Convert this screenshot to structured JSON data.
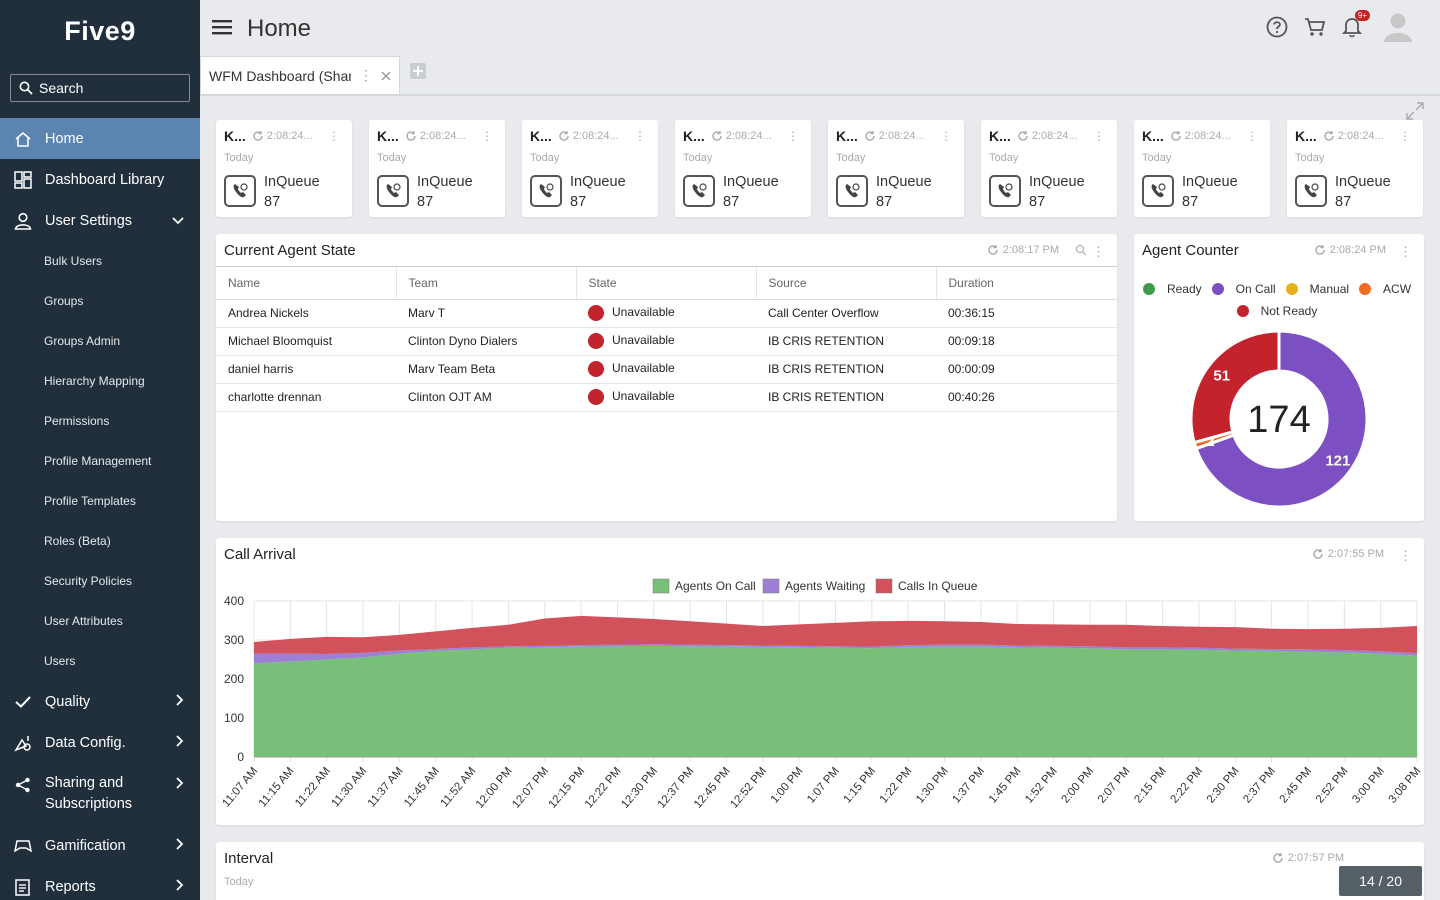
{
  "sidebar": {
    "logo": "Five9",
    "search_placeholder": "Search",
    "items": [
      {
        "label": "Home",
        "icon": "home-icon",
        "active": true
      },
      {
        "label": "Dashboard Library",
        "icon": "dashboard-icon"
      },
      {
        "label": "User Settings",
        "icon": "user-icon",
        "expanded": true
      }
    ],
    "subitems": [
      "Bulk Users",
      "Groups",
      "Groups Admin",
      "Hierarchy Mapping",
      "Permissions",
      "Profile Management",
      "Profile Templates",
      "Roles (Beta)",
      "Security Policies",
      "User Attributes",
      "Users"
    ],
    "items2": [
      {
        "label": "Quality",
        "icon": "check-icon"
      },
      {
        "label": "Data Config.",
        "icon": "data-config-icon"
      },
      {
        "label": "Sharing and Subscriptions",
        "icon": "share-icon"
      },
      {
        "label": "Gamification",
        "icon": "gamepad-icon"
      },
      {
        "label": "Reports",
        "icon": "reports-icon"
      }
    ]
  },
  "header": {
    "title": "Home",
    "notification_badge": "9+"
  },
  "tabs": [
    {
      "label": "WFM Dashboard (Shared)"
    }
  ],
  "kpi_cards": [
    {
      "title": "K...",
      "time": "2:08:24...",
      "period": "Today",
      "label": "InQueue",
      "value": "87"
    },
    {
      "title": "K...",
      "time": "2:08:24...",
      "period": "Today",
      "label": "InQueue",
      "value": "87"
    },
    {
      "title": "K...",
      "time": "2:08:24...",
      "period": "Today",
      "label": "InQueue",
      "value": "87"
    },
    {
      "title": "K...",
      "time": "2:08:24...",
      "period": "Today",
      "label": "InQueue",
      "value": "87"
    },
    {
      "title": "K...",
      "time": "2:08:24...",
      "period": "Today",
      "label": "InQueue",
      "value": "87"
    },
    {
      "title": "K...",
      "time": "2:08:24...",
      "period": "Today",
      "label": "InQueue",
      "value": "87"
    },
    {
      "title": "K...",
      "time": "2:08:24...",
      "period": "Today",
      "label": "InQueue",
      "value": "87"
    },
    {
      "title": "K...",
      "time": "2:08:24...",
      "period": "Today",
      "label": "InQueue",
      "value": "87"
    }
  ],
  "agent_state": {
    "title": "Current Agent State",
    "time": "2:08:17 PM",
    "columns": [
      "Name",
      "Team",
      "State",
      "Source",
      "Duration"
    ],
    "rows": [
      [
        "Andrea Nickels",
        "Marv T",
        "Unavailable",
        "Call Center Overflow",
        "00:36:15"
      ],
      [
        "Michael Bloomquist",
        "Clinton Dyno Dialers",
        "Unavailable",
        "IB CRIS RETENTION",
        "00:09:18"
      ],
      [
        "daniel harris",
        "Marv Team Beta",
        "Unavailable",
        "IB CRIS RETENTION",
        "00:00:09"
      ],
      [
        "charlotte drennan",
        "Clinton OJT AM",
        "Unavailable",
        "IB CRIS RETENTION",
        "00:40:26"
      ]
    ],
    "state_color": "#c3232c"
  },
  "agent_counter": {
    "title": "Agent Counter",
    "time": "2:08:24 PM",
    "legend": [
      {
        "label": "Ready",
        "color": "#3c9a48"
      },
      {
        "label": "On Call",
        "color": "#7c4fc2"
      },
      {
        "label": "Manual",
        "color": "#e3b120"
      },
      {
        "label": "ACW",
        "color": "#ef6c23"
      },
      {
        "label": "Not Ready",
        "color": "#c3232c"
      }
    ]
  },
  "call_arrival": {
    "title": "Call Arrival",
    "time": "2:07:55 PM"
  },
  "interval": {
    "title": "Interval",
    "time": "2:07:57 PM",
    "period": "Today"
  },
  "pager": "14 / 20",
  "chart_data": [
    {
      "type": "pie",
      "title": "Agent Counter",
      "total": "174",
      "labels": [
        "On Call",
        "ACW",
        "Not Ready"
      ],
      "values": [
        121,
        2,
        51
      ],
      "colors": [
        "#7c4fc2",
        "#ef6c23",
        "#c3232c"
      ]
    },
    {
      "type": "area",
      "title": "Call Arrival",
      "stacked": true,
      "ylim": [
        0,
        400
      ],
      "yticks": [
        0,
        100,
        200,
        300,
        400
      ],
      "x_tick_labels": [
        "11:07 AM",
        "11:15 AM",
        "11:22 AM",
        "11:30 AM",
        "11:37 AM",
        "11:45 AM",
        "11:52 AM",
        "12:00 PM",
        "12:07 PM",
        "12:15 PM",
        "12:22 PM",
        "12:30 PM",
        "12:37 PM",
        "12:45 PM",
        "12:52 PM",
        "1:00 PM",
        "1:07 PM",
        "1:15 PM",
        "1:22 PM",
        "1:30 PM",
        "1:37 PM",
        "1:45 PM",
        "1:52 PM",
        "2:00 PM",
        "2:07 PM",
        "2:15 PM",
        "2:22 PM",
        "2:30 PM",
        "2:37 PM",
        "2:45 PM",
        "2:52 PM",
        "3:00 PM",
        "3:08 PM"
      ],
      "legend_position": "top",
      "series": [
        {
          "name": "Agents On Call",
          "color": "#78bf7a",
          "values": [
            240,
            245,
            250,
            255,
            265,
            272,
            276,
            280,
            281,
            283,
            284,
            285,
            284,
            283,
            282,
            281,
            280,
            279,
            282,
            283,
            283,
            281,
            280,
            279,
            276,
            276,
            275,
            273,
            272,
            270,
            268,
            265,
            260
          ]
        },
        {
          "name": "Agents Waiting",
          "color": "#9d7fd6",
          "values": [
            25,
            20,
            14,
            12,
            8,
            5,
            5,
            4,
            4,
            4,
            4,
            4,
            4,
            4,
            4,
            4,
            4,
            4,
            5,
            5,
            5,
            5,
            5,
            5,
            5,
            5,
            5,
            5,
            5,
            6,
            6,
            6,
            6
          ]
        },
        {
          "name": "Calls In Queue",
          "color": "#d2525c",
          "values": [
            30,
            38,
            44,
            40,
            40,
            45,
            50,
            55,
            70,
            75,
            70,
            65,
            60,
            55,
            50,
            55,
            60,
            65,
            62,
            60,
            58,
            55,
            55,
            55,
            58,
            55,
            54,
            55,
            52,
            52,
            55,
            60,
            70
          ]
        }
      ]
    }
  ]
}
